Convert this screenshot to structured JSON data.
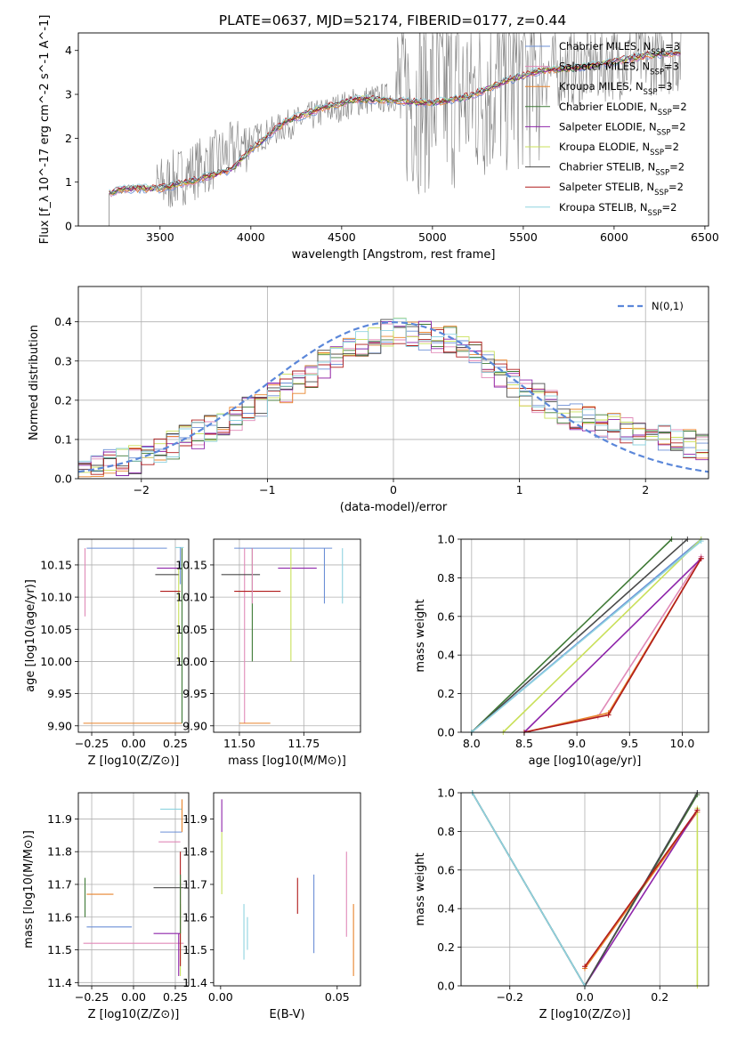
{
  "colors": {
    "Chabrier MILES": "#6b8fd6",
    "Salpeter MILES": "#e08ab8",
    "Kroupa MILES": "#e8842c",
    "Chabrier ELODIE": "#3f7a36",
    "Salpeter ELODIE": "#8e24aa",
    "Kroupa ELODIE": "#c9e05a",
    "Chabrier STELIB": "#4a4a4a",
    "Salpeter STELIB": "#b01c1c",
    "Kroupa STELIB": "#8fd3e0"
  },
  "chart_data": [
    {
      "type": "line",
      "title": "PLATE=0637, MJD=52174, FIBERID=0177, z=0.44",
      "xlabel": "wavelength [Angstrom, rest frame]",
      "ylabel": "Flux [f_λ 10^-17 erg cm^-2 s^-1 A^-1]",
      "xlim": [
        3050,
        6520
      ],
      "ylim": [
        0,
        4.4
      ],
      "xticks": [
        3500,
        4000,
        4500,
        5000,
        5500,
        6000,
        6500
      ],
      "yticks": [
        0,
        1,
        2,
        3,
        4
      ],
      "grid": false,
      "legend_position": "top-right",
      "legend": [
        {
          "label": "Chabrier MILES, N",
          "sub": "SSP",
          "tail": "=3"
        },
        {
          "label": "Salpeter MILES, N",
          "sub": "SSP",
          "tail": "=3"
        },
        {
          "label": "Kroupa MILES, N",
          "sub": "SSP",
          "tail": "=3"
        },
        {
          "label": "Chabrier ELODIE, N",
          "sub": "SSP",
          "tail": "=2"
        },
        {
          "label": "Salpeter ELODIE, N",
          "sub": "SSP",
          "tail": "=2"
        },
        {
          "label": "Kroupa ELODIE, N",
          "sub": "SSP",
          "tail": "=2"
        },
        {
          "label": "Chabrier STELIB, N",
          "sub": "SSP",
          "tail": "=2"
        },
        {
          "label": "Salpeter STELIB, N",
          "sub": "SSP",
          "tail": "=2"
        },
        {
          "label": "Kroupa STELIB, N",
          "sub": "SSP",
          "tail": "=2"
        }
      ],
      "observed_spectrum": {
        "color": "#808080",
        "x": [
          3220,
          3400,
          3500,
          3600,
          3700,
          3800,
          3900,
          4000,
          4200,
          4400,
          4600,
          4800,
          5000,
          5200,
          5400,
          5600,
          5800,
          6000,
          6200,
          6370
        ],
        "y": [
          0.75,
          0.85,
          0.9,
          1.1,
          1.3,
          1.5,
          1.7,
          1.95,
          2.3,
          2.6,
          2.85,
          2.95,
          2.9,
          3.0,
          3.3,
          3.5,
          3.6,
          3.75,
          3.85,
          3.9
        ]
      },
      "model_envelope": {
        "x": [
          3220,
          3300,
          3400,
          3500,
          3700,
          3900,
          4000,
          4200,
          4400,
          4600,
          4800,
          5000,
          5200,
          5400,
          5600,
          5800,
          6000,
          6200,
          6370
        ],
        "y": [
          0.75,
          0.85,
          0.85,
          0.85,
          1.05,
          1.3,
          1.75,
          2.4,
          2.7,
          2.9,
          2.85,
          2.8,
          2.95,
          3.3,
          3.55,
          3.6,
          3.75,
          3.9,
          3.95
        ]
      }
    },
    {
      "type": "line",
      "xlabel": "(data-model)/error",
      "ylabel": "Normed distribution",
      "xlim": [
        -2.5,
        2.5
      ],
      "ylim": [
        0,
        0.49
      ],
      "xticks": [
        -2,
        -1,
        0,
        1,
        2
      ],
      "yticks": [
        0.0,
        0.1,
        0.2,
        0.3,
        0.4
      ],
      "grid": true,
      "legend_position": "top-right",
      "reference_curve": {
        "label": "N(0,1)",
        "color": "#5b87d9",
        "style": "dashed"
      },
      "histogram": {
        "x": [
          -2.5,
          -2.0,
          -1.5,
          -1.0,
          -0.5,
          0.0,
          0.5,
          1.0,
          1.5,
          2.0,
          2.5
        ],
        "y": [
          0.03,
          0.05,
          0.12,
          0.2,
          0.3,
          0.38,
          0.35,
          0.23,
          0.15,
          0.11,
          0.08
        ]
      }
    },
    {
      "type": "scatter",
      "xlabel": "Z [log10(Z/Z⊙)]",
      "ylabel": "age  [log10(age/yr)]",
      "xlim": [
        -0.33,
        0.33
      ],
      "ylim": [
        9.89,
        10.19
      ],
      "xticks": [
        -0.25,
        0.0,
        0.25
      ],
      "yticks": [
        9.9,
        9.95,
        10.0,
        10.05,
        10.1,
        10.15
      ],
      "grid": true
    },
    {
      "type": "scatter",
      "xlabel": "mass [log10(M/M⊙)]",
      "ylabel": "",
      "xlim": [
        11.4,
        11.97
      ],
      "ylim": [
        9.89,
        10.19
      ],
      "xticks": [
        11.5,
        11.75
      ],
      "yticks": [
        9.9,
        9.95,
        10.0,
        10.05,
        10.1,
        10.15
      ],
      "grid": true
    },
    {
      "type": "line",
      "xlabel": "age  [log10(age/yr)]",
      "ylabel": "mass weight",
      "xlim": [
        7.9,
        10.25
      ],
      "ylim": [
        0,
        1.0
      ],
      "xticks": [
        8.0,
        8.5,
        9.0,
        9.5,
        10.0
      ],
      "yticks": [
        0.0,
        0.2,
        0.4,
        0.6,
        0.8,
        1.0
      ],
      "grid": true
    },
    {
      "type": "scatter",
      "xlabel": "Z [log10(Z/Z⊙)]",
      "ylabel": "mass [log10(M/M⊙)]",
      "xlim": [
        -0.33,
        0.33
      ],
      "ylim": [
        11.39,
        11.98
      ],
      "xticks": [
        -0.25,
        0.0,
        0.25
      ],
      "yticks": [
        11.4,
        11.5,
        11.6,
        11.7,
        11.8,
        11.9
      ],
      "grid": true
    },
    {
      "type": "scatter",
      "xlabel": "E(B-V)",
      "ylabel": "",
      "xlim": [
        -0.003,
        0.06
      ],
      "ylim": [
        11.39,
        11.98
      ],
      "xticks": [
        0.0,
        0.05
      ],
      "yticks": [
        11.4,
        11.5,
        11.6,
        11.7,
        11.8,
        11.9
      ],
      "grid": false
    },
    {
      "type": "line",
      "xlabel": "Z [log10(Z/Z⊙)]",
      "ylabel": "mass weight",
      "xlim": [
        -0.33,
        0.33
      ],
      "ylim": [
        0,
        1.0
      ],
      "xticks": [
        -0.2,
        0.0,
        0.2
      ],
      "yticks": [
        0.0,
        0.2,
        0.4,
        0.6,
        0.8,
        1.0
      ],
      "grid": true
    }
  ]
}
